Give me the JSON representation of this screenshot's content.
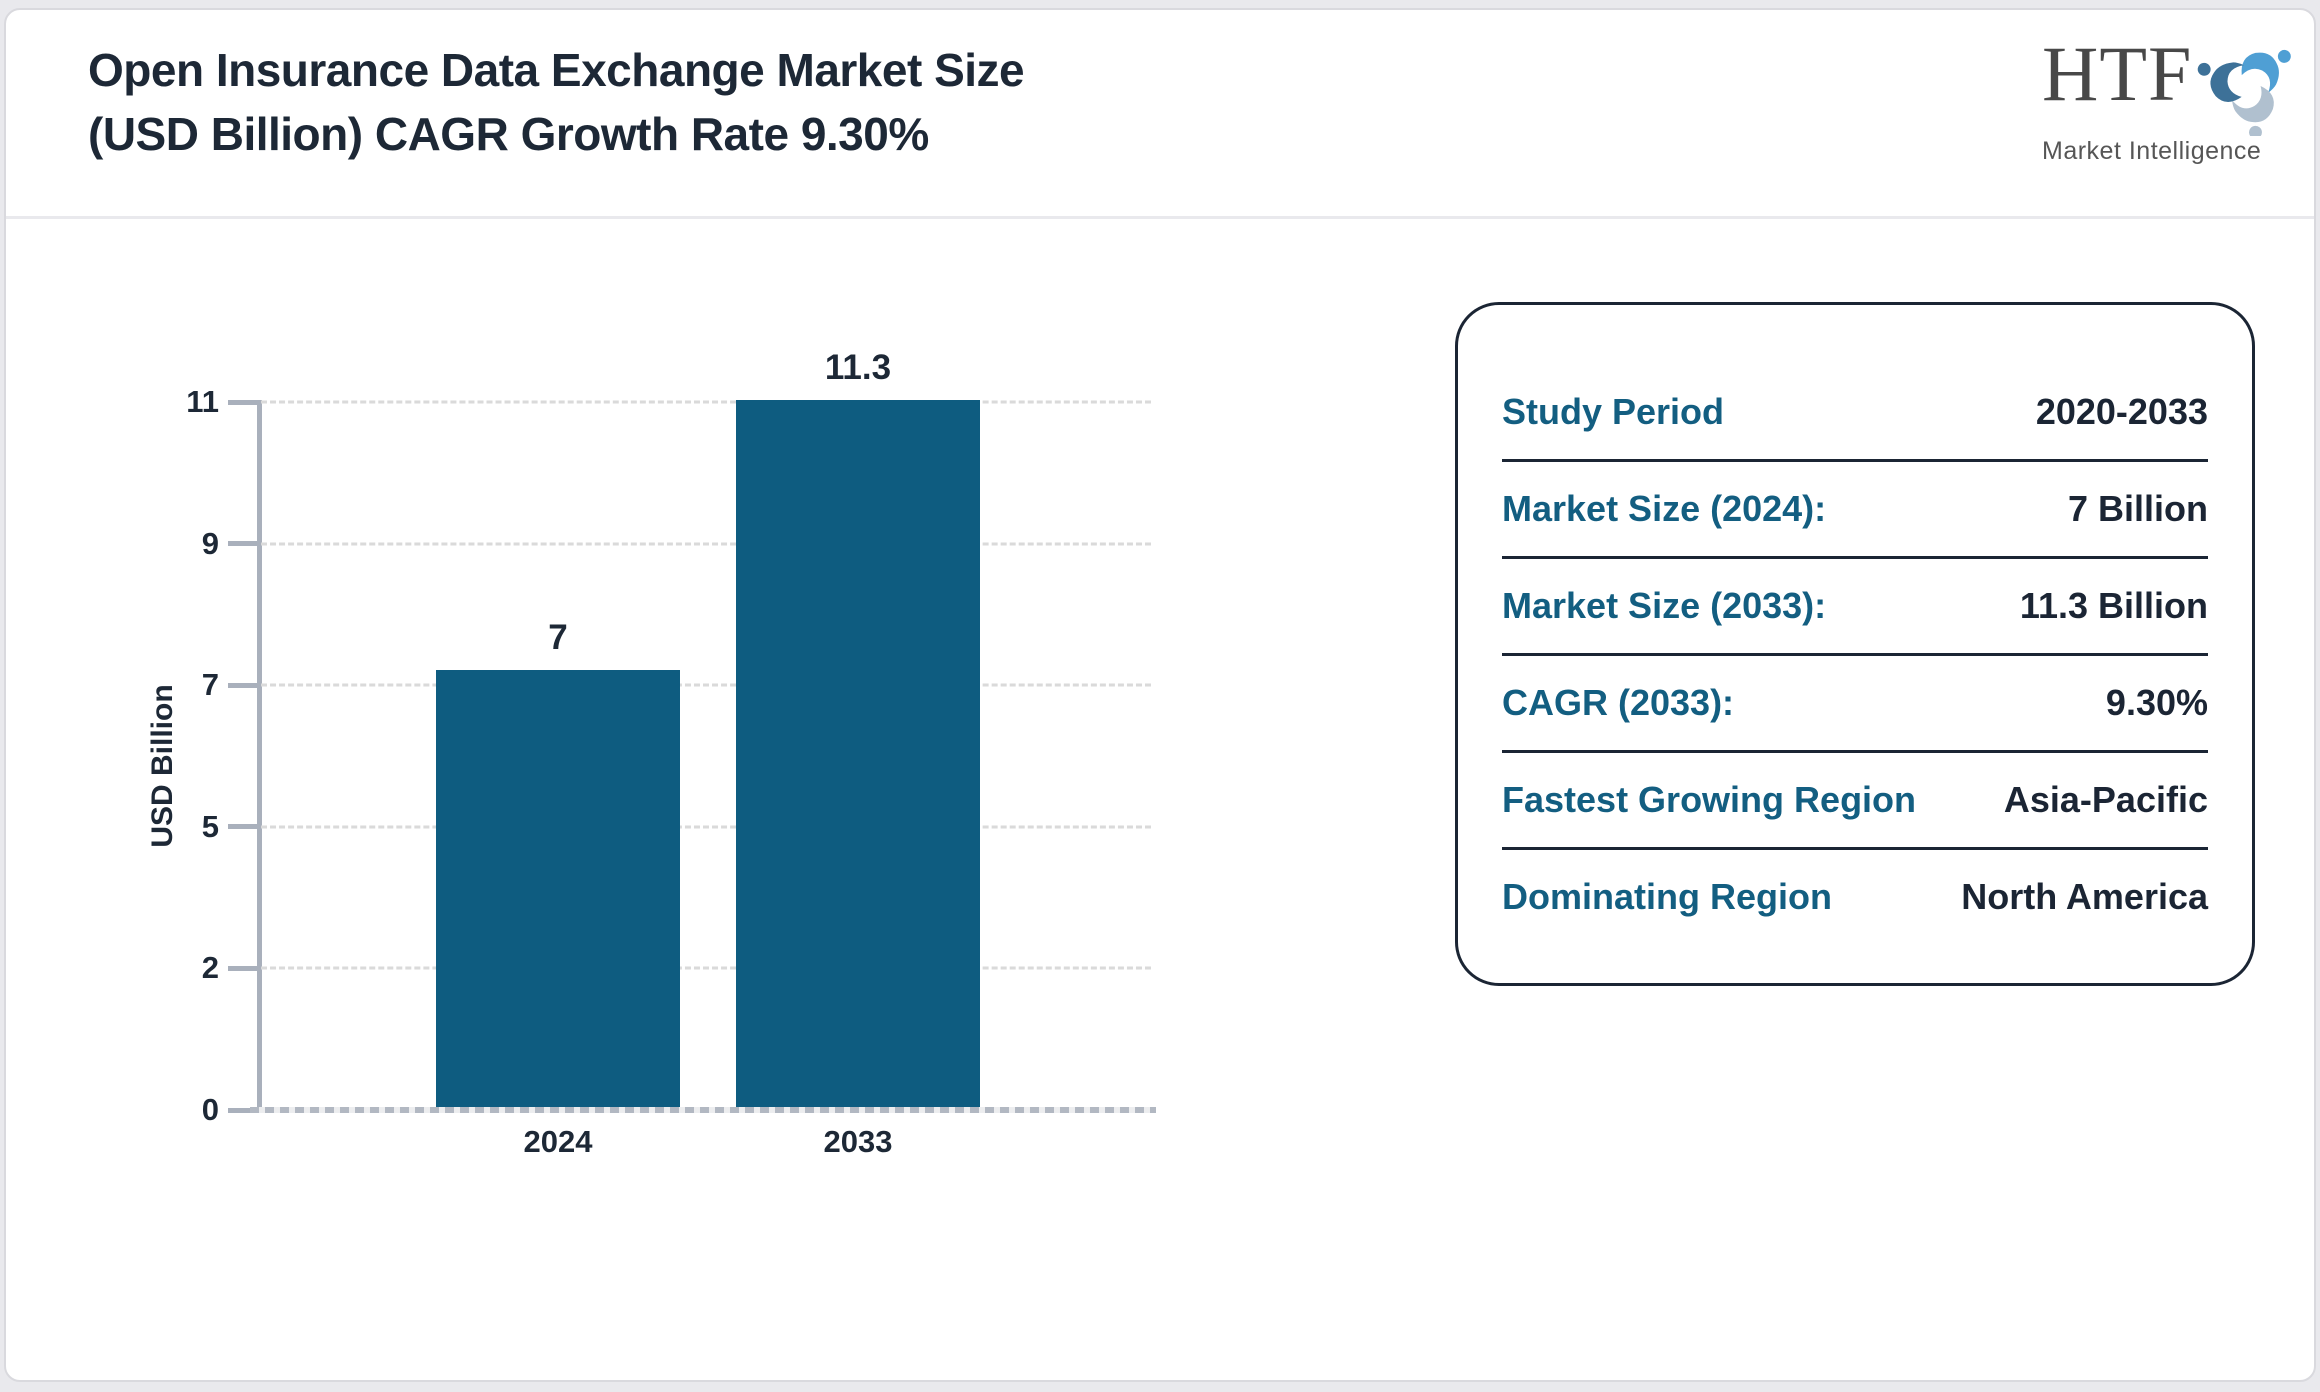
{
  "header": {
    "title_lines": [
      "Open Insurance Data Exchange Market Size",
      "(USD Billion) CAGR Growth Rate 9.30%"
    ],
    "logo": {
      "acronym": "HTF",
      "subtitle": "Market Intelligence",
      "icon_colors": [
        "#4f9fd4",
        "#b0c0cf",
        "#3d7198"
      ]
    }
  },
  "chart_data": {
    "type": "bar",
    "title": "Open Insurance Data Exchange Market Size (USD Billion) CAGR Growth Rate 9.30%",
    "categories": [
      "2024",
      "2033"
    ],
    "values": [
      7,
      11.3
    ],
    "value_labels": [
      "7",
      "11.3"
    ],
    "xlabel": "",
    "ylabel": "USD Billion",
    "yticks": [
      0,
      2,
      5,
      7,
      9,
      11
    ],
    "ylim": [
      0,
      11.3
    ],
    "grid": "horizontal-dashed",
    "legend": "none",
    "bar_color": "#0e5c80"
  },
  "info_panel": {
    "rows": [
      {
        "label": "Study Period",
        "value": "2020-2033"
      },
      {
        "label": "Market Size (2024):",
        "value": "7 Billion"
      },
      {
        "label": "Market Size (2033):",
        "value": "11.3 Billion"
      },
      {
        "label": "CAGR (2033):",
        "value": "9.30%"
      },
      {
        "label": "Fastest Growing Region",
        "value": "Asia-Pacific"
      },
      {
        "label": "Dominating Region",
        "value": "North America"
      }
    ],
    "label_color": "#135e81",
    "value_color": "#1b2534"
  }
}
